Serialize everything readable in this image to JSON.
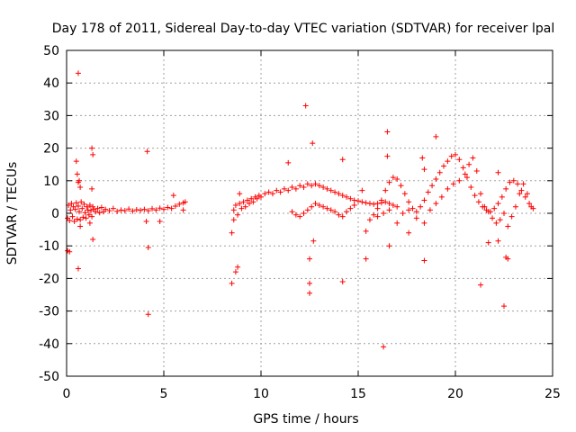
{
  "chart_data": {
    "type": "scatter",
    "title": "Day 178 of 2011, Sidereal Day-to-day VTEC variation (SDTVAR) for receiver lpal",
    "xlabel": "GPS time / hours",
    "ylabel": "SDTVAR / TECUs",
    "xlim": [
      0,
      25
    ],
    "ylim": [
      -50,
      50
    ],
    "xticks": [
      0,
      5,
      10,
      15,
      20,
      25
    ],
    "yticks": [
      -50,
      -40,
      -30,
      -20,
      -10,
      0,
      10,
      20,
      30,
      40,
      50
    ],
    "grid": true,
    "marker": "+",
    "color": "#ff0000",
    "series": [
      {
        "name": "SDTVAR",
        "points": [
          [
            0.05,
            -1.5
          ],
          [
            0.1,
            2.5
          ],
          [
            0.15,
            -2.2
          ],
          [
            0.2,
            1.0
          ],
          [
            0.25,
            3.0
          ],
          [
            0.3,
            -1.0
          ],
          [
            0.35,
            2.0
          ],
          [
            0.4,
            -2.5
          ],
          [
            0.45,
            1.2
          ],
          [
            0.5,
            3.2
          ],
          [
            0.55,
            -1.8
          ],
          [
            0.6,
            2.2
          ],
          [
            0.65,
            0.5
          ],
          [
            0.7,
            -2.0
          ],
          [
            0.75,
            3.5
          ],
          [
            0.8,
            1.5
          ],
          [
            0.85,
            -1.2
          ],
          [
            0.9,
            2.8
          ],
          [
            0.95,
            0.2
          ],
          [
            1.0,
            -1.5
          ],
          [
            1.05,
            2.0
          ],
          [
            1.1,
            1.0
          ],
          [
            1.15,
            -0.5
          ],
          [
            1.2,
            2.5
          ],
          [
            1.25,
            0.8
          ],
          [
            1.3,
            -1.0
          ],
          [
            1.35,
            2.0
          ],
          [
            1.4,
            1.2
          ],
          [
            1.5,
            0.5
          ],
          [
            1.6,
            1.5
          ],
          [
            1.7,
            0.2
          ],
          [
            1.8,
            1.8
          ],
          [
            1.9,
            0.5
          ],
          [
            2.0,
            1.2
          ],
          [
            2.2,
            0.8
          ],
          [
            2.4,
            1.5
          ],
          [
            2.6,
            0.6
          ],
          [
            2.8,
            1.0
          ],
          [
            3.0,
            0.8
          ],
          [
            3.2,
            1.3
          ],
          [
            3.4,
            0.7
          ],
          [
            3.6,
            1.1
          ],
          [
            3.8,
            0.9
          ],
          [
            4.0,
            1.2
          ],
          [
            4.2,
            0.8
          ],
          [
            4.4,
            1.4
          ],
          [
            4.6,
            1.0
          ],
          [
            4.8,
            1.6
          ],
          [
            5.0,
            1.2
          ],
          [
            5.2,
            1.8
          ],
          [
            5.4,
            1.5
          ],
          [
            5.6,
            2.2
          ],
          [
            5.8,
            2.8
          ],
          [
            6.0,
            3.2
          ],
          [
            6.1,
            3.5
          ],
          [
            0.05,
            -11.5
          ],
          [
            0.15,
            -11.8
          ],
          [
            0.6,
            43.0
          ],
          [
            0.5,
            16.0
          ],
          [
            0.55,
            12.0
          ],
          [
            0.6,
            9.5
          ],
          [
            0.65,
            10.0
          ],
          [
            0.7,
            8.0
          ],
          [
            0.6,
            -17.0
          ],
          [
            0.7,
            -4.0
          ],
          [
            1.3,
            20.0
          ],
          [
            1.35,
            18.0
          ],
          [
            1.3,
            7.5
          ],
          [
            1.35,
            -8.0
          ],
          [
            1.2,
            -3.0
          ],
          [
            4.15,
            19.0
          ],
          [
            4.2,
            -10.5
          ],
          [
            4.2,
            -31.0
          ],
          [
            4.1,
            -2.5
          ],
          [
            4.8,
            -2.5
          ],
          [
            5.5,
            5.5
          ],
          [
            6.0,
            1.0
          ],
          [
            8.6,
            1.0
          ],
          [
            8.7,
            2.5
          ],
          [
            8.8,
            -0.5
          ],
          [
            8.9,
            3.0
          ],
          [
            9.0,
            1.5
          ],
          [
            9.1,
            3.5
          ],
          [
            9.2,
            2.0
          ],
          [
            9.3,
            4.0
          ],
          [
            9.4,
            3.0
          ],
          [
            9.5,
            4.5
          ],
          [
            9.6,
            3.5
          ],
          [
            9.7,
            5.0
          ],
          [
            9.8,
            4.5
          ],
          [
            9.9,
            5.5
          ],
          [
            10.0,
            5.0
          ],
          [
            10.2,
            6.0
          ],
          [
            10.4,
            6.5
          ],
          [
            10.6,
            6.0
          ],
          [
            10.8,
            7.0
          ],
          [
            11.0,
            6.5
          ],
          [
            11.2,
            7.5
          ],
          [
            11.4,
            7.0
          ],
          [
            11.6,
            8.0
          ],
          [
            11.8,
            7.5
          ],
          [
            12.0,
            8.5
          ],
          [
            12.2,
            8.0
          ],
          [
            12.4,
            9.0
          ],
          [
            12.6,
            8.5
          ],
          [
            12.8,
            9.0
          ],
          [
            13.0,
            8.5
          ],
          [
            13.2,
            8.0
          ],
          [
            13.4,
            7.5
          ],
          [
            13.6,
            7.0
          ],
          [
            13.8,
            6.5
          ],
          [
            14.0,
            6.0
          ],
          [
            14.2,
            5.5
          ],
          [
            14.4,
            5.0
          ],
          [
            14.6,
            4.5
          ],
          [
            14.8,
            4.0
          ],
          [
            15.0,
            3.8
          ],
          [
            15.2,
            3.5
          ],
          [
            15.4,
            3.2
          ],
          [
            15.6,
            3.0
          ],
          [
            15.8,
            2.8
          ],
          [
            16.0,
            3.0
          ],
          [
            16.2,
            3.2
          ],
          [
            16.4,
            3.5
          ],
          [
            16.6,
            3.0
          ],
          [
            16.8,
            2.5
          ],
          [
            17.0,
            2.0
          ],
          [
            11.6,
            0.5
          ],
          [
            11.8,
            -0.5
          ],
          [
            12.0,
            -1.0
          ],
          [
            12.2,
            0.0
          ],
          [
            12.4,
            1.0
          ],
          [
            12.6,
            2.0
          ],
          [
            12.8,
            3.0
          ],
          [
            13.0,
            2.5
          ],
          [
            13.2,
            2.0
          ],
          [
            13.4,
            1.5
          ],
          [
            13.6,
            1.0
          ],
          [
            13.8,
            0.5
          ],
          [
            14.0,
            -0.5
          ],
          [
            14.2,
            -1.0
          ],
          [
            14.4,
            0.5
          ],
          [
            14.6,
            1.5
          ],
          [
            14.8,
            2.5
          ],
          [
            15.6,
            -2.0
          ],
          [
            15.8,
            -0.5
          ],
          [
            16.0,
            1.5
          ],
          [
            16.2,
            4.0
          ],
          [
            16.4,
            7.0
          ],
          [
            16.6,
            9.5
          ],
          [
            16.8,
            11.0
          ],
          [
            17.0,
            10.5
          ],
          [
            17.2,
            8.5
          ],
          [
            17.4,
            6.0
          ],
          [
            17.6,
            3.5
          ],
          [
            17.8,
            1.5
          ],
          [
            18.0,
            0.5
          ],
          [
            18.2,
            2.0
          ],
          [
            18.4,
            4.0
          ],
          [
            18.6,
            6.5
          ],
          [
            18.8,
            8.5
          ],
          [
            19.0,
            10.5
          ],
          [
            19.2,
            12.5
          ],
          [
            19.4,
            14.5
          ],
          [
            19.6,
            16.0
          ],
          [
            19.8,
            17.5
          ],
          [
            20.0,
            18.0
          ],
          [
            20.2,
            16.5
          ],
          [
            20.4,
            14.0
          ],
          [
            20.6,
            11.0
          ],
          [
            20.8,
            8.0
          ],
          [
            21.0,
            5.5
          ],
          [
            21.2,
            3.5
          ],
          [
            21.4,
            2.0
          ],
          [
            21.6,
            1.0
          ],
          [
            21.8,
            0.5
          ],
          [
            22.0,
            1.5
          ],
          [
            22.2,
            3.0
          ],
          [
            22.4,
            5.0
          ],
          [
            22.6,
            7.5
          ],
          [
            22.8,
            9.5
          ],
          [
            23.0,
            10.0
          ],
          [
            23.2,
            9.0
          ],
          [
            23.4,
            7.0
          ],
          [
            23.6,
            5.0
          ],
          [
            23.8,
            3.0
          ],
          [
            24.0,
            1.5
          ],
          [
            16.0,
            -1.0
          ],
          [
            16.3,
            0.0
          ],
          [
            16.6,
            1.0
          ],
          [
            17.0,
            -3.0
          ],
          [
            17.3,
            0.0
          ],
          [
            17.6,
            1.0
          ],
          [
            18.0,
            -1.5
          ],
          [
            18.4,
            -3.0
          ],
          [
            18.7,
            1.0
          ],
          [
            19.0,
            3.0
          ],
          [
            19.3,
            5.0
          ],
          [
            19.6,
            7.5
          ],
          [
            19.9,
            9.0
          ],
          [
            20.2,
            10.0
          ],
          [
            20.5,
            12.0
          ],
          [
            20.7,
            15.0
          ],
          [
            20.9,
            17.0
          ],
          [
            21.1,
            13.0
          ],
          [
            21.3,
            6.0
          ],
          [
            21.5,
            2.0
          ],
          [
            21.7,
            0.5
          ],
          [
            21.9,
            -1.5
          ],
          [
            22.1,
            -3.0
          ],
          [
            22.3,
            -2.0
          ],
          [
            22.5,
            0.0
          ],
          [
            22.7,
            -4.0
          ],
          [
            22.9,
            -1.0
          ],
          [
            23.1,
            2.0
          ],
          [
            23.3,
            6.0
          ],
          [
            23.5,
            9.0
          ],
          [
            23.7,
            6.0
          ],
          [
            23.9,
            2.0
          ],
          [
            8.5,
            -6.0
          ],
          [
            8.5,
            -21.5
          ],
          [
            8.7,
            -18.0
          ],
          [
            8.8,
            -16.5
          ],
          [
            8.9,
            6.0
          ],
          [
            8.6,
            -2.0
          ],
          [
            11.4,
            15.5
          ],
          [
            12.3,
            33.0
          ],
          [
            12.5,
            -14.0
          ],
          [
            12.5,
            -21.5
          ],
          [
            12.5,
            -24.5
          ],
          [
            12.65,
            21.5
          ],
          [
            12.7,
            -8.5
          ],
          [
            14.2,
            16.5
          ],
          [
            14.2,
            -21.0
          ],
          [
            15.4,
            -5.5
          ],
          [
            15.4,
            -14.0
          ],
          [
            15.2,
            7.0
          ],
          [
            16.3,
            -41.0
          ],
          [
            16.5,
            25.0
          ],
          [
            16.5,
            17.5
          ],
          [
            16.6,
            -10.0
          ],
          [
            17.6,
            -6.0
          ],
          [
            18.3,
            17.0
          ],
          [
            18.4,
            13.5
          ],
          [
            18.4,
            -14.5
          ],
          [
            19.0,
            23.5
          ],
          [
            21.3,
            -22.0
          ],
          [
            21.7,
            -9.0
          ],
          [
            22.2,
            -8.5
          ],
          [
            22.5,
            -28.5
          ],
          [
            22.6,
            -13.5
          ],
          [
            22.7,
            -14.0
          ],
          [
            22.2,
            12.5
          ]
        ]
      }
    ]
  }
}
